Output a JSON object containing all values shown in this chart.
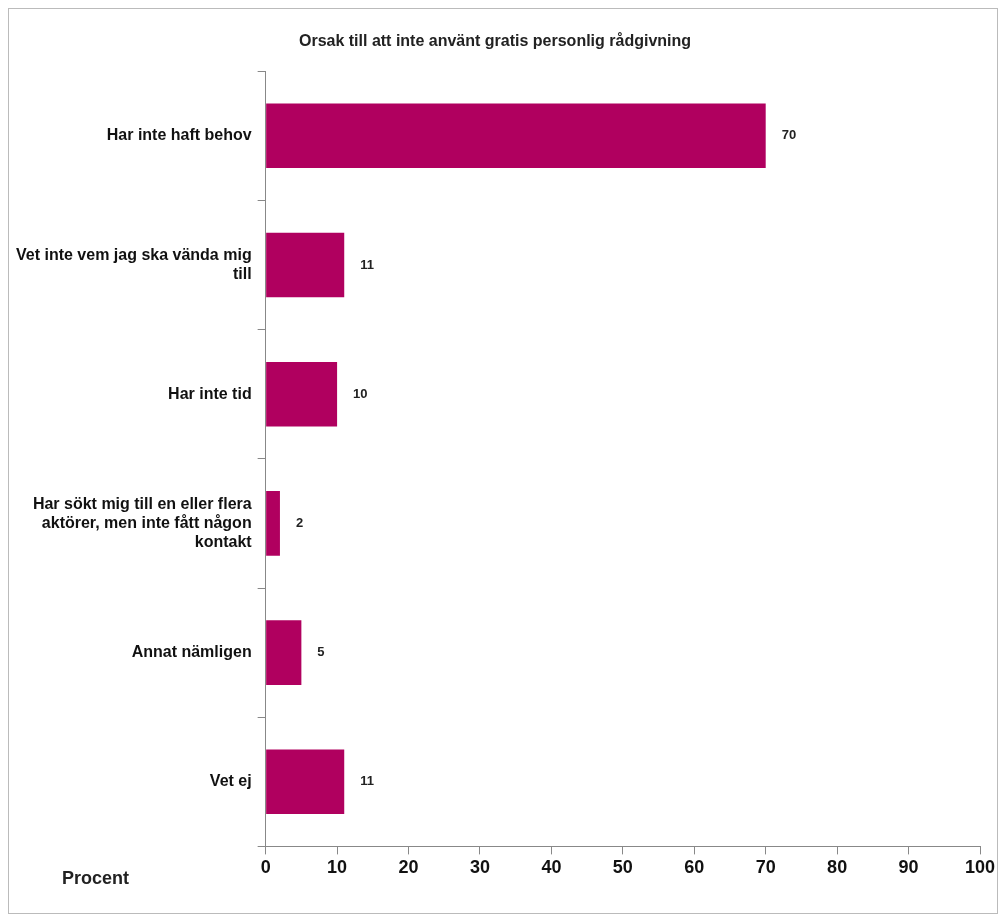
{
  "chart_data": {
    "type": "bar",
    "orientation": "horizontal",
    "title": "Orsak till att inte använt gratis personlig rådgivning",
    "xlabel": "Procent",
    "categories": [
      "Har inte haft behov",
      "Vet inte vem jag ska vända mig till",
      "Har inte tid",
      "Har sökt mig till en eller flera aktörer, men inte fått någon kontakt",
      "Annat nämligen",
      "Vet ej"
    ],
    "values": [
      70,
      11,
      10,
      2,
      5,
      11
    ],
    "color": "#b0005f",
    "data_labels": true,
    "xlim": [
      0,
      100
    ],
    "xticks": [
      0,
      10,
      20,
      30,
      40,
      50,
      60,
      70,
      80,
      90,
      100
    ],
    "grid": false,
    "legend": false
  }
}
